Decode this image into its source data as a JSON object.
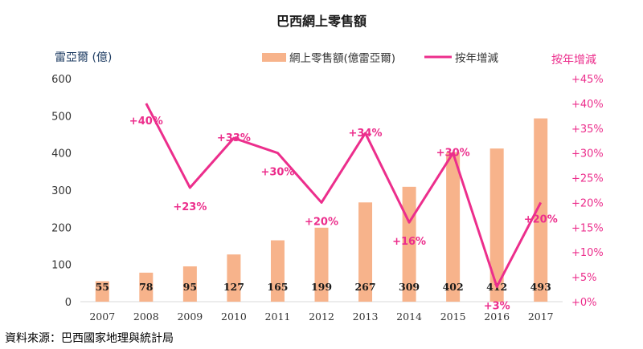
{
  "chart_data": {
    "type": "bar",
    "title": "巴西網上零售額",
    "ylabel": "雷亞爾 (億)",
    "y2label": "按年增減",
    "source": "資料來源：巴西國家地理與統計局",
    "categories": [
      "2007",
      "2008",
      "2009",
      "2010",
      "2011",
      "2012",
      "2013",
      "2014",
      "2015",
      "2016",
      "2017"
    ],
    "ylim": [
      0,
      600
    ],
    "yticks": [
      "0",
      "100",
      "200",
      "300",
      "400",
      "500",
      "600"
    ],
    "y2lim": [
      0,
      45
    ],
    "y2ticks": [
      "+0%",
      "+5%",
      "+10%",
      "+15%",
      "+20%",
      "+25%",
      "+30%",
      "+35%",
      "+40%",
      "+45%"
    ],
    "legend_position": "top",
    "series": [
      {
        "name": "網上零售額(億雷亞爾)",
        "type": "bar",
        "axis": "left",
        "color": "#f7b38b",
        "values": [
          55,
          78,
          95,
          127,
          165,
          199,
          267,
          309,
          402,
          412,
          493
        ],
        "labels": [
          "55",
          "78",
          "95",
          "127",
          "165",
          "199",
          "267",
          "309",
          "402",
          "412",
          "493"
        ]
      },
      {
        "name": "按年增減",
        "type": "line",
        "axis": "right",
        "color": "#ec2e8c",
        "x": [
          "2008",
          "2009",
          "2010",
          "2011",
          "2012",
          "2013",
          "2014",
          "2015",
          "2016",
          "2017"
        ],
        "values": [
          40,
          23,
          33,
          30,
          20,
          34,
          16,
          30,
          3,
          20
        ],
        "labels": [
          "+40%",
          "+23%",
          "+33%",
          "+30%",
          "+20%",
          "+34%",
          "+16%",
          "+30%",
          "+3%",
          "+20%"
        ]
      }
    ]
  }
}
